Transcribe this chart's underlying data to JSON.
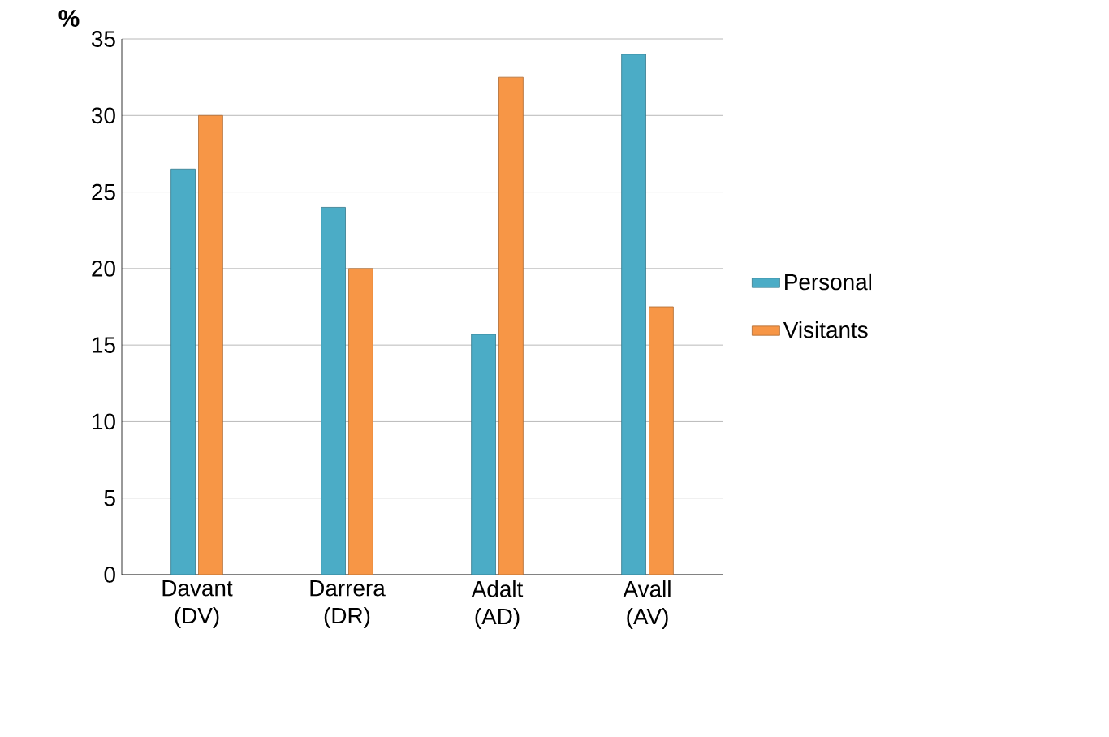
{
  "chart_data": {
    "type": "bar",
    "ylabel": "%",
    "categories": [
      "Davant (DV)",
      "Darrera (DR)",
      "Adalt (AD)",
      "Avall (AV)"
    ],
    "series": [
      {
        "name": "Personal",
        "color": "#4bacc6",
        "values": [
          26.5,
          24,
          15.7,
          34
        ]
      },
      {
        "name": "Visitants",
        "color": "#f79646",
        "values": [
          30,
          20,
          32.5,
          17.5
        ]
      }
    ],
    "ylim": [
      0,
      35
    ],
    "yticks": [
      0,
      5,
      10,
      15,
      20,
      25,
      30,
      35
    ],
    "grid": "y",
    "legend": "right"
  }
}
